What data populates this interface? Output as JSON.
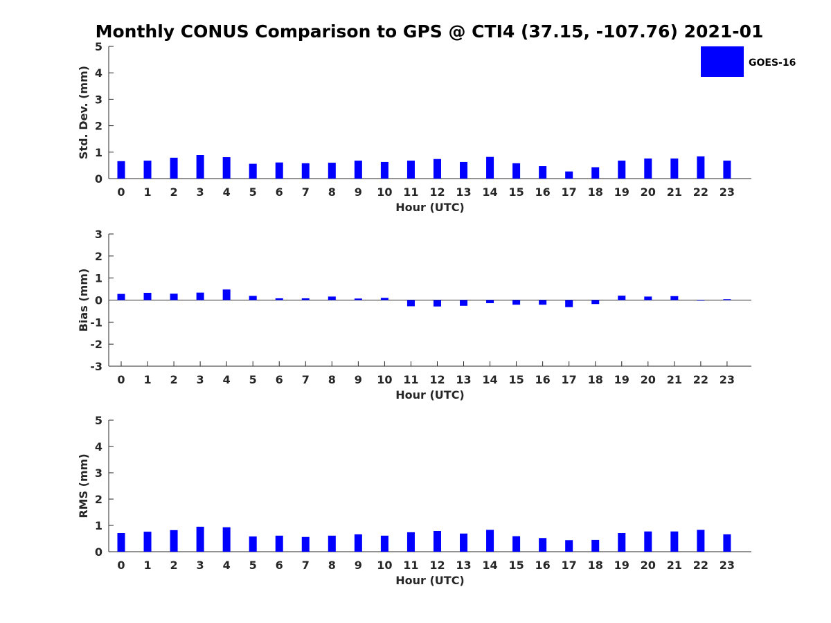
{
  "title": "Monthly CONUS Comparison to GPS @ CTI4 (37.15, -107.76) 2021-01",
  "legend": {
    "label": "GOES-16",
    "color": "#0000ff"
  },
  "chart_data": [
    {
      "type": "bar",
      "xlabel": "Hour (UTC)",
      "ylabel": "Std. Dev. (mm)",
      "ylim": [
        0,
        5
      ],
      "yticks": [
        0,
        1,
        2,
        3,
        4,
        5
      ],
      "categories": [
        "0",
        "1",
        "2",
        "3",
        "4",
        "5",
        "6",
        "7",
        "8",
        "9",
        "10",
        "11",
        "12",
        "13",
        "14",
        "15",
        "16",
        "17",
        "18",
        "19",
        "20",
        "21",
        "22",
        "23"
      ],
      "series": [
        {
          "name": "GOES-16",
          "color": "#0000ff",
          "values": [
            0.66,
            0.68,
            0.79,
            0.89,
            0.81,
            0.56,
            0.61,
            0.58,
            0.6,
            0.68,
            0.63,
            0.68,
            0.74,
            0.63,
            0.82,
            0.58,
            0.47,
            0.27,
            0.43,
            0.68,
            0.76,
            0.76,
            0.84,
            0.68
          ]
        }
      ],
      "grid": false,
      "legend": "top-right"
    },
    {
      "type": "bar",
      "xlabel": "Hour (UTC)",
      "ylabel": "Bias (mm)",
      "ylim": [
        -3,
        3
      ],
      "yticks": [
        -3,
        -2,
        -1,
        0,
        1,
        2,
        3
      ],
      "categories": [
        "0",
        "1",
        "2",
        "3",
        "4",
        "5",
        "6",
        "7",
        "8",
        "9",
        "10",
        "11",
        "12",
        "13",
        "14",
        "15",
        "16",
        "17",
        "18",
        "19",
        "20",
        "21",
        "22",
        "23"
      ],
      "series": [
        {
          "name": "GOES-16",
          "color": "#0000ff",
          "values": [
            0.28,
            0.33,
            0.29,
            0.34,
            0.48,
            0.19,
            0.08,
            0.08,
            0.16,
            0.07,
            0.1,
            -0.28,
            -0.29,
            -0.26,
            -0.14,
            -0.21,
            -0.21,
            -0.32,
            -0.18,
            0.2,
            0.16,
            0.18,
            0.0,
            0.04
          ]
        }
      ],
      "grid": false
    },
    {
      "type": "bar",
      "xlabel": "Hour (UTC)",
      "ylabel": "RMS (mm)",
      "ylim": [
        0,
        5
      ],
      "yticks": [
        0,
        1,
        2,
        3,
        4,
        5
      ],
      "categories": [
        "0",
        "1",
        "2",
        "3",
        "4",
        "5",
        "6",
        "7",
        "8",
        "9",
        "10",
        "11",
        "12",
        "13",
        "14",
        "15",
        "16",
        "17",
        "18",
        "19",
        "20",
        "21",
        "22",
        "23"
      ],
      "series": [
        {
          "name": "GOES-16",
          "color": "#0000ff",
          "values": [
            0.71,
            0.76,
            0.82,
            0.95,
            0.93,
            0.58,
            0.61,
            0.56,
            0.61,
            0.66,
            0.61,
            0.74,
            0.79,
            0.69,
            0.83,
            0.59,
            0.52,
            0.44,
            0.45,
            0.71,
            0.77,
            0.77,
            0.83,
            0.66
          ]
        }
      ],
      "grid": false
    }
  ]
}
